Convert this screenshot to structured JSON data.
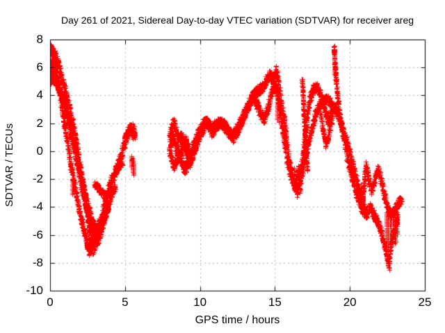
{
  "chart_data": {
    "type": "scatter",
    "title": "Day 261 of 2021, Sidereal Day-to-day VTEC variation (SDTVAR) for receiver areg",
    "xlabel": "GPS time / hours",
    "ylabel": "SDTVAR / TECUs",
    "xlim": [
      0,
      25
    ],
    "ylim": [
      -10,
      8
    ],
    "xticks": [
      0,
      5,
      10,
      15,
      20,
      25
    ],
    "yticks": [
      8,
      6,
      4,
      2,
      0,
      -2,
      -4,
      -6,
      -8,
      -10
    ],
    "grid": true,
    "legend": false,
    "marker": "plus",
    "marker_color": "#ff0000",
    "grid_color": "#b0b0b0",
    "axis_color": "#000000",
    "background_color": "#ffffff",
    "series_name": "SDTVAR",
    "traces": [
      {
        "w": 0.35,
        "pts": [
          [
            0,
            7.4
          ],
          [
            0.3,
            6.9
          ],
          [
            0.6,
            6.0
          ],
          [
            0.9,
            4.8
          ],
          [
            1.2,
            3.5
          ],
          [
            1.5,
            2.0
          ],
          [
            1.8,
            0.3
          ],
          [
            2.1,
            -1.7
          ],
          [
            2.35,
            -3.5
          ],
          [
            2.55,
            -5.0
          ],
          [
            2.7,
            -6.3
          ],
          [
            2.85,
            -7.1
          ],
          [
            3.0,
            -6.6
          ],
          [
            3.2,
            -5.7
          ],
          [
            3.5,
            -4.4
          ],
          [
            3.8,
            -3.1
          ],
          [
            4.1,
            -2.0
          ],
          [
            4.4,
            -1.3
          ],
          [
            4.7,
            -0.4
          ],
          [
            5.0,
            0.7
          ],
          [
            5.2,
            1.4
          ],
          [
            5.4,
            1.6
          ]
        ]
      },
      {
        "w": 0.35,
        "pts": [
          [
            0.1,
            7.2
          ],
          [
            0.35,
            5.9
          ],
          [
            0.6,
            4.3
          ],
          [
            0.85,
            2.6
          ],
          [
            1.1,
            0.9
          ],
          [
            1.35,
            -0.8
          ],
          [
            1.6,
            -2.3
          ],
          [
            1.85,
            -3.7
          ],
          [
            2.1,
            -5.0
          ],
          [
            2.35,
            -6.1
          ],
          [
            2.6,
            -7.2
          ],
          [
            2.8,
            -6.7
          ],
          [
            3.05,
            -5.9
          ],
          [
            3.3,
            -5.0
          ]
        ]
      },
      {
        "w": 0.3,
        "pts": [
          [
            0,
            6.4
          ],
          [
            0.3,
            5.7
          ],
          [
            0.6,
            4.7
          ],
          [
            0.9,
            3.5
          ],
          [
            1.2,
            2.1
          ],
          [
            1.5,
            0.6
          ],
          [
            1.8,
            -1.0
          ],
          [
            2.1,
            -2.6
          ],
          [
            2.4,
            -4.1
          ],
          [
            2.7,
            -5.3
          ],
          [
            3.0,
            -6.2
          ],
          [
            3.15,
            -6.5
          ],
          [
            3.35,
            -5.9
          ],
          [
            3.6,
            -4.9
          ],
          [
            3.9,
            -3.9
          ]
        ]
      },
      {
        "w": 0.3,
        "pts": [
          [
            0.02,
            5.3
          ],
          [
            0.3,
            5.1
          ],
          [
            0.6,
            4.5
          ],
          [
            0.9,
            3.6
          ],
          [
            1.2,
            2.4
          ],
          [
            1.5,
            1.0
          ],
          [
            1.8,
            -0.5
          ],
          [
            2.1,
            -2.0
          ],
          [
            2.4,
            -3.4
          ],
          [
            2.7,
            -4.6
          ],
          [
            2.95,
            -5.5
          ],
          [
            3.2,
            -5.9
          ],
          [
            3.5,
            -5.1
          ],
          [
            3.8,
            -4.1
          ],
          [
            4.1,
            -3.1
          ],
          [
            4.35,
            -2.5
          ]
        ]
      },
      {
        "w": 0.25,
        "pts": [
          [
            2.95,
            -2.3
          ],
          [
            3.25,
            -2.7
          ],
          [
            3.5,
            -3.0
          ],
          [
            3.7,
            -3.4
          ]
        ]
      },
      {
        "w": 0.2,
        "pts": [
          [
            4.35,
            -1.5
          ],
          [
            4.6,
            -1.1
          ],
          [
            4.8,
            -0.85
          ]
        ]
      },
      {
        "w": 0.3,
        "pts": [
          [
            4.95,
            0.8
          ],
          [
            5.15,
            1.3
          ],
          [
            5.35,
            1.7
          ],
          [
            5.55,
            1.4
          ],
          [
            5.68,
            1.0
          ]
        ]
      },
      {
        "w": 0.35,
        "pts": [
          [
            7.95,
            0.9
          ],
          [
            8.1,
            1.7
          ],
          [
            8.25,
            2.1
          ],
          [
            8.4,
            1.5
          ],
          [
            8.55,
            0.6
          ],
          [
            8.7,
            1.1
          ],
          [
            8.85,
            0.8
          ],
          [
            9.0,
            0.2
          ],
          [
            9.15,
            -0.4
          ],
          [
            9.3,
            -0.9
          ],
          [
            9.5,
            -0.3
          ],
          [
            9.7,
            0.4
          ],
          [
            9.9,
            1.0
          ],
          [
            10.1,
            1.6
          ],
          [
            10.35,
            2.1
          ],
          [
            10.6,
            1.9
          ],
          [
            10.8,
            1.4
          ],
          [
            11.0,
            1.7
          ],
          [
            11.25,
            2.0
          ],
          [
            11.5,
            1.9
          ],
          [
            11.75,
            1.6
          ],
          [
            12.0,
            1.2
          ],
          [
            12.2,
            0.95
          ],
          [
            12.45,
            1.3
          ],
          [
            12.7,
            1.9
          ],
          [
            12.95,
            2.6
          ],
          [
            13.2,
            3.3
          ],
          [
            13.45,
            3.9
          ],
          [
            13.7,
            4.2
          ],
          [
            13.95,
            4.4
          ],
          [
            14.2,
            4.7
          ],
          [
            14.45,
            5.1
          ],
          [
            14.65,
            5.5
          ],
          [
            14.85,
            5.1
          ],
          [
            15.0,
            5.5
          ],
          [
            15.1,
            5.7
          ]
        ]
      },
      {
        "w": 0.35,
        "pts": [
          [
            7.95,
            0.1
          ],
          [
            8.1,
            -0.5
          ],
          [
            8.25,
            -1.1
          ],
          [
            8.4,
            -0.7
          ],
          [
            8.55,
            -0.1
          ],
          [
            8.7,
            -0.5
          ],
          [
            8.85,
            -1.0
          ],
          [
            9.0,
            -1.3
          ],
          [
            9.2,
            -0.8
          ],
          [
            9.4,
            -0.1
          ],
          [
            9.6,
            0.5
          ],
          [
            9.8,
            1.1
          ],
          [
            10.0,
            1.6
          ],
          [
            10.25,
            2.0
          ],
          [
            10.5,
            2.1
          ],
          [
            10.75,
            1.6
          ],
          [
            11.0,
            1.9
          ],
          [
            11.3,
            2.1
          ],
          [
            11.6,
            1.9
          ],
          [
            11.9,
            1.4
          ],
          [
            12.15,
            1.1
          ],
          [
            12.4,
            1.5
          ],
          [
            12.65,
            2.0
          ],
          [
            12.9,
            2.5
          ],
          [
            13.15,
            3.1
          ],
          [
            13.4,
            3.6
          ],
          [
            13.6,
            3.9
          ],
          [
            13.8,
            3.3
          ],
          [
            14.05,
            2.7
          ],
          [
            14.3,
            2.3
          ],
          [
            14.55,
            3.2
          ],
          [
            14.75,
            4.2
          ],
          [
            14.95,
            4.7
          ],
          [
            15.1,
            4.4
          ],
          [
            15.25,
            3.5
          ],
          [
            15.4,
            2.5
          ]
        ]
      },
      {
        "w": 0.3,
        "pts": [
          [
            8.0,
            0.5
          ],
          [
            8.2,
            1.2
          ],
          [
            8.4,
            0.3
          ],
          [
            8.6,
            -0.6
          ],
          [
            8.8,
            0.3
          ],
          [
            9.0,
            0.9
          ],
          [
            9.2,
            0.3
          ],
          [
            9.4,
            -0.5
          ],
          [
            9.6,
            0.1
          ],
          [
            9.8,
            0.7
          ],
          [
            10.0,
            1.2
          ],
          [
            10.3,
            1.8
          ]
        ]
      },
      {
        "w": 0.4,
        "pts": [
          [
            15.1,
            5.8
          ],
          [
            15.3,
            4.4
          ],
          [
            15.5,
            2.9
          ],
          [
            15.7,
            1.2
          ],
          [
            15.9,
            -0.5
          ],
          [
            16.1,
            -1.7
          ],
          [
            16.3,
            -2.5
          ],
          [
            16.5,
            -2.9
          ],
          [
            16.7,
            -2.4
          ]
        ]
      },
      {
        "w": 0.35,
        "pts": [
          [
            15.05,
            4.6
          ],
          [
            15.25,
            3.3
          ],
          [
            15.45,
            1.9
          ],
          [
            15.65,
            0.5
          ],
          [
            15.85,
            -0.8
          ],
          [
            16.05,
            -1.6
          ],
          [
            16.25,
            -2.1
          ],
          [
            16.45,
            -1.8
          ],
          [
            16.65,
            -1.2
          ]
        ]
      },
      {
        "w": 0.35,
        "pts": [
          [
            16.5,
            -2.9
          ],
          [
            16.7,
            -1.7
          ],
          [
            16.85,
            -0.4
          ],
          [
            17.0,
            1.1
          ],
          [
            17.15,
            2.7
          ],
          [
            17.35,
            3.9
          ],
          [
            17.6,
            4.5
          ],
          [
            17.85,
            4.6
          ],
          [
            18.05,
            3.9
          ],
          [
            18.25,
            3.3
          ],
          [
            18.45,
            2.5
          ],
          [
            18.6,
            2.1
          ],
          [
            18.75,
            2.8
          ],
          [
            18.9,
            3.2
          ],
          [
            19.05,
            3.0
          ],
          [
            19.3,
            2.3
          ],
          [
            19.6,
            1.3
          ],
          [
            19.9,
            0.2
          ],
          [
            20.2,
            -1.1
          ],
          [
            20.5,
            -2.4
          ],
          [
            20.75,
            -3.4
          ],
          [
            20.95,
            -4.1
          ],
          [
            21.1,
            -4.4
          ]
        ]
      },
      {
        "w": 0.3,
        "pts": [
          [
            16.65,
            -2.3
          ],
          [
            16.9,
            -1.0
          ],
          [
            17.15,
            0.2
          ],
          [
            17.4,
            1.4
          ],
          [
            17.65,
            2.5
          ],
          [
            17.9,
            3.2
          ],
          [
            18.15,
            3.6
          ],
          [
            18.4,
            3.8
          ],
          [
            18.65,
            3.6
          ],
          [
            18.9,
            3.1
          ]
        ]
      },
      {
        "w": 0.25,
        "pts": [
          [
            17.95,
            3.4
          ],
          [
            18.1,
            2.3
          ],
          [
            18.25,
            1.2
          ],
          [
            18.4,
            0.5
          ],
          [
            18.55,
            1.0
          ],
          [
            18.7,
            1.9
          ],
          [
            18.85,
            2.7
          ]
        ]
      },
      {
        "w": 0.15,
        "pts": [
          [
            16.8,
            5.2
          ],
          [
            16.86,
            4.1
          ],
          [
            16.92,
            2.9
          ],
          [
            16.98,
            1.7
          ],
          [
            17.04,
            0.5
          ],
          [
            17.1,
            -0.6
          ],
          [
            17.16,
            -1.4
          ]
        ]
      },
      {
        "w": 0.3,
        "pts": [
          [
            18.93,
            7.5
          ],
          [
            19.0,
            6.3
          ],
          [
            19.1,
            4.6
          ],
          [
            19.3,
            2.7
          ],
          [
            19.55,
            1.1
          ],
          [
            19.8,
            -0.4
          ],
          [
            20.1,
            -1.7
          ],
          [
            20.4,
            -2.9
          ],
          [
            20.7,
            -3.9
          ],
          [
            20.95,
            -4.4
          ],
          [
            21.15,
            -4.6
          ]
        ]
      },
      {
        "w": 0.3,
        "pts": [
          [
            20.78,
            -4.0
          ],
          [
            20.9,
            -2.8
          ],
          [
            21.0,
            -1.6
          ],
          [
            21.07,
            -1.0
          ],
          [
            21.18,
            -1.5
          ],
          [
            21.3,
            -2.3
          ],
          [
            21.42,
            -2.9
          ],
          [
            21.55,
            -2.5
          ],
          [
            21.7,
            -1.8
          ],
          [
            21.85,
            -1.3
          ],
          [
            22.0,
            -1.7
          ],
          [
            22.15,
            -2.4
          ],
          [
            22.3,
            -3.2
          ],
          [
            22.45,
            -3.9
          ],
          [
            22.6,
            -4.4
          ],
          [
            22.75,
            -4.6
          ],
          [
            22.9,
            -4.3
          ],
          [
            23.1,
            -3.9
          ],
          [
            23.3,
            -3.6
          ],
          [
            23.45,
            -3.5
          ]
        ]
      },
      {
        "w": 0.3,
        "pts": [
          [
            21.1,
            -4.4
          ],
          [
            21.3,
            -4.0
          ],
          [
            21.45,
            -4.2
          ],
          [
            21.6,
            -4.6
          ],
          [
            21.75,
            -4.9
          ],
          [
            21.95,
            -5.4
          ],
          [
            22.1,
            -5.9
          ],
          [
            22.25,
            -6.5
          ],
          [
            22.4,
            -7.2
          ],
          [
            22.52,
            -7.8
          ],
          [
            22.62,
            -8.3
          ]
        ]
      },
      {
        "w": 0.25,
        "pts": [
          [
            22.62,
            -7.9
          ],
          [
            22.7,
            -7.0
          ],
          [
            22.8,
            -6.4
          ],
          [
            22.95,
            -5.8
          ],
          [
            23.1,
            -5.1
          ],
          [
            23.2,
            -4.7
          ]
        ]
      }
    ],
    "streaks": [
      [
        0.05,
        4.8,
        6.2
      ],
      [
        0.12,
        5.0,
        6.1
      ],
      [
        0.18,
        4.9,
        5.6
      ],
      [
        0.24,
        5.0,
        5.5
      ],
      [
        1.5,
        -3.1,
        -1.9
      ],
      [
        2.45,
        -6.9,
        -5.6
      ],
      [
        2.75,
        -7.3,
        -6.2
      ],
      [
        5.5,
        0.9,
        2.0
      ],
      [
        5.6,
        1.0,
        1.8
      ],
      [
        5.42,
        -0.35,
        -1.1
      ],
      [
        5.5,
        -0.5,
        -1.5
      ],
      [
        5.58,
        -0.9,
        -1.7
      ],
      [
        15.18,
        2.3,
        4.7
      ],
      [
        15.26,
        2.1,
        4.1
      ],
      [
        15.62,
        0.4,
        2.5
      ],
      [
        15.7,
        -0.1,
        1.9
      ],
      [
        16.28,
        -2.8,
        -1.2
      ],
      [
        16.38,
        -2.9,
        -1.6
      ],
      [
        18.98,
        5.5,
        7.2
      ],
      [
        20.75,
        -3.9,
        -2.4
      ],
      [
        20.85,
        -4.1,
        -2.9
      ],
      [
        22.45,
        -6.8,
        -4.4
      ],
      [
        22.55,
        -7.2,
        -4.7
      ],
      [
        22.7,
        -6.7,
        -5.0
      ],
      [
        22.88,
        -6.2,
        -4.5
      ],
      [
        23.02,
        -6.6,
        -4.9
      ],
      [
        23.12,
        -5.9,
        -4.4
      ]
    ]
  }
}
